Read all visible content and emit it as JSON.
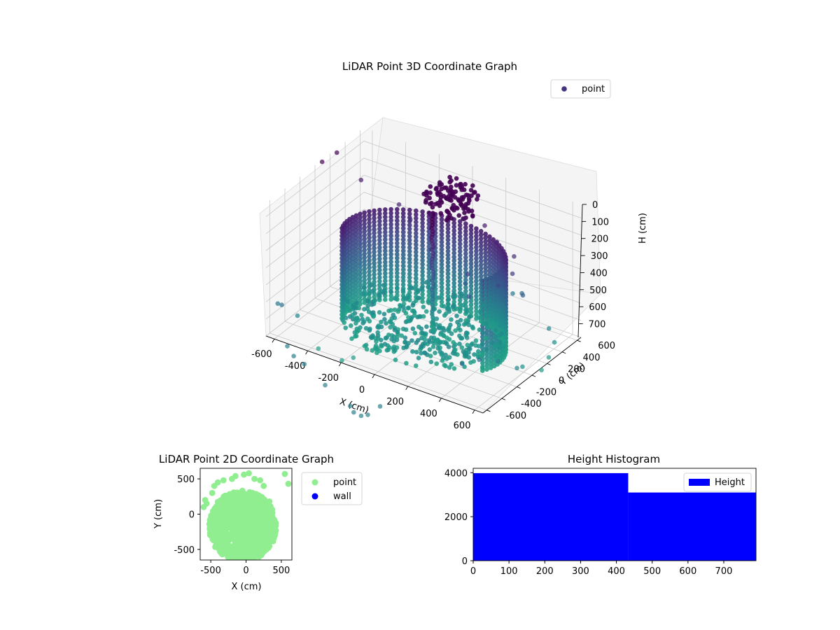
{
  "chart_data": [
    {
      "type": "scatter",
      "projection": "3d",
      "title": "LiDAR Point 3D Coordinate Graph",
      "xlabel": "X (cm)",
      "ylabel": "Y (cm)",
      "zlabel": "H (cm)",
      "xlim": [
        -650,
        650
      ],
      "ylim": [
        -650,
        650
      ],
      "zlim": [
        780,
        0
      ],
      "z_inverted": true,
      "x_ticks": [
        -600,
        -400,
        -200,
        0,
        200,
        400,
        600
      ],
      "y_ticks": [
        -600,
        -400,
        -200,
        0,
        200,
        400,
        600
      ],
      "z_ticks": [
        0,
        100,
        200,
        300,
        400,
        500,
        600,
        700
      ],
      "colormap": "viridis",
      "grid": true,
      "legend_position": "top-right",
      "series": [
        {
          "name": "point",
          "color": "#46337e"
        }
      ],
      "structure": {
        "wall": {
          "radius": 450,
          "z_range": [
            0,
            540
          ],
          "angle_range_deg": [
            -20,
            200
          ]
        },
        "pole": {
          "x": 0,
          "y": 120,
          "z_range": [
            0,
            700
          ]
        },
        "ceiling_cluster": {
          "x": 0,
          "y": 350,
          "z_range": [
            620,
            760
          ],
          "count": 110
        },
        "scatter_outliers": [
          [
            -600,
            500,
            540
          ],
          [
            -350,
            450,
            500
          ],
          [
            -250,
            380,
            470
          ],
          [
            -150,
            420,
            520
          ],
          [
            50,
            430,
            560
          ],
          [
            150,
            480,
            540
          ],
          [
            250,
            420,
            500
          ],
          [
            380,
            360,
            480
          ],
          [
            420,
            250,
            430
          ],
          [
            380,
            150,
            380
          ],
          [
            300,
            -60,
            360
          ],
          [
            230,
            80,
            420
          ],
          [
            160,
            200,
            300
          ],
          [
            460,
            300,
            300
          ],
          [
            400,
            420,
            250
          ],
          [
            300,
            520,
            180
          ],
          [
            580,
            380,
            120
          ],
          [
            640,
            320,
            80
          ],
          [
            660,
            200,
            40
          ],
          [
            680,
            60,
            20
          ],
          [
            620,
            -60,
            60
          ],
          [
            650,
            -200,
            110
          ],
          [
            600,
            -340,
            180
          ],
          [
            560,
            -500,
            230
          ],
          [
            520,
            -640,
            240
          ],
          [
            -700,
            400,
            700
          ],
          [
            -720,
            250,
            690
          ],
          [
            -560,
            -640,
            210
          ],
          [
            -620,
            -560,
            170
          ],
          [
            -520,
            -520,
            120
          ],
          [
            -350,
            -620,
            20
          ],
          [
            -200,
            -640,
            10
          ],
          [
            -140,
            -620,
            40
          ]
        ]
      }
    },
    {
      "type": "scatter",
      "title": "LiDAR Point 2D Coordinate Graph",
      "xlabel": "X (cm)",
      "ylabel": "Y (cm)",
      "xlim": [
        -650,
        650
      ],
      "ylim": [
        -650,
        650
      ],
      "x_ticks": [
        -500,
        0,
        500
      ],
      "y_ticks": [
        -500,
        0,
        500
      ],
      "legend_position": "outside-right",
      "series": [
        {
          "name": "point",
          "color": "#90ee90"
        },
        {
          "name": "wall",
          "color": "#0000ff"
        }
      ],
      "outliers": [
        [
          -600,
          100
        ],
        [
          -580,
          200
        ],
        [
          -560,
          150
        ],
        [
          -400,
          450
        ],
        [
          -320,
          480
        ],
        [
          -200,
          500
        ],
        [
          -150,
          540
        ],
        [
          -30,
          560
        ],
        [
          40,
          580
        ],
        [
          120,
          500
        ],
        [
          200,
          480
        ],
        [
          250,
          400
        ],
        [
          330,
          180
        ],
        [
          550,
          570
        ],
        [
          600,
          430
        ],
        [
          -480,
          300
        ],
        [
          -450,
          400
        ]
      ]
    },
    {
      "type": "bar",
      "title": "Height Histogram",
      "xlabel": "",
      "ylabel": "",
      "xlim": [
        0,
        790
      ],
      "ylim": [
        0,
        4200
      ],
      "x_ticks": [
        0,
        100,
        200,
        300,
        400,
        500,
        600,
        700
      ],
      "y_ticks": [
        0,
        2000,
        4000
      ],
      "legend_position": "top-right",
      "series": [
        {
          "name": "Height",
          "color": "#0000ff"
        }
      ],
      "bins": [
        {
          "x0": 0,
          "x1": 433,
          "count": 3980
        },
        {
          "x0": 433,
          "x1": 790,
          "count": 3100
        }
      ]
    }
  ]
}
